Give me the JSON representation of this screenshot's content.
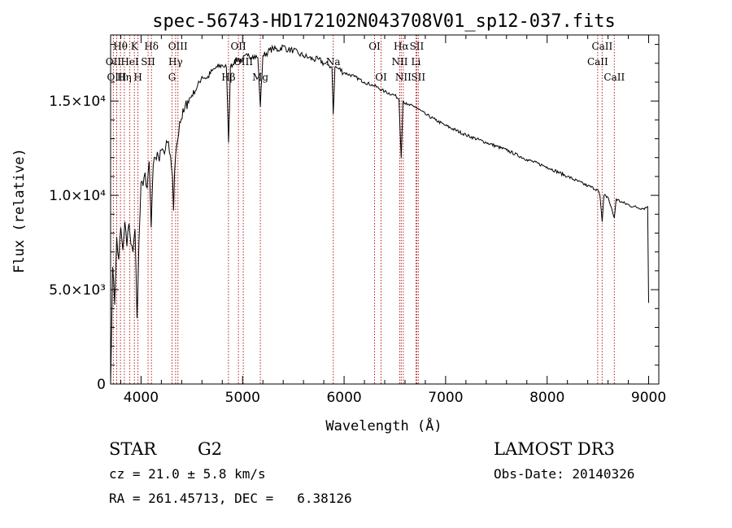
{
  "chart_data": {
    "type": "line",
    "title": "spec-56743-HD172102N043708V01_sp12-037.fits",
    "xlabel": "Wavelength (Å)",
    "ylabel": "Flux (relative)",
    "xlim": [
      3700,
      9100
    ],
    "ylim": [
      0,
      18500
    ],
    "x_ticks": [
      4000,
      5000,
      6000,
      7000,
      8000,
      9000
    ],
    "y_ticks": [
      {
        "value": 0,
        "label": "0"
      },
      {
        "value": 5000,
        "label": "5.0×10³"
      },
      {
        "value": 10000,
        "label": "1.0×10⁴"
      },
      {
        "value": 15000,
        "label": "1.5×10⁴"
      }
    ],
    "line_color": "#000000",
    "marker_color": "#b22222",
    "series": [
      {
        "name": "flux",
        "x": [
          3700,
          3720,
          3740,
          3760,
          3780,
          3800,
          3820,
          3840,
          3860,
          3880,
          3900,
          3920,
          3940,
          3960,
          3980,
          4000,
          4020,
          4040,
          4060,
          4080,
          4100,
          4120,
          4140,
          4160,
          4180,
          4200,
          4230,
          4260,
          4290,
          4310,
          4320,
          4330,
          4350,
          4380,
          4420,
          4460,
          4500,
          4550,
          4600,
          4650,
          4700,
          4750,
          4800,
          4840,
          4862,
          4880,
          4920,
          4960,
          5000,
          5050,
          5100,
          5150,
          5175,
          5200,
          5250,
          5300,
          5350,
          5400,
          5450,
          5500,
          5550,
          5600,
          5650,
          5700,
          5750,
          5800,
          5850,
          5880,
          5893,
          5910,
          5950,
          6000,
          6100,
          6200,
          6300,
          6400,
          6500,
          6540,
          6563,
          6580,
          6620,
          6700,
          6800,
          6900,
          7000,
          7200,
          7400,
          7600,
          7800,
          8000,
          8200,
          8400,
          8498,
          8520,
          8542,
          8560,
          8600,
          8662,
          8680,
          8750,
          8850,
          8950,
          8990,
          9000
        ],
        "values": [
          0,
          6200,
          4200,
          7800,
          6600,
          8300,
          7100,
          8600,
          7300,
          8500,
          7400,
          7000,
          8200,
          3500,
          7600,
          10700,
          10500,
          11200,
          10400,
          11800,
          8300,
          11600,
          12000,
          12300,
          11800,
          12400,
          12200,
          12800,
          12100,
          11000,
          9200,
          11200,
          12600,
          13900,
          14400,
          15000,
          15300,
          15700,
          16300,
          16200,
          16600,
          16800,
          16900,
          16800,
          12800,
          16800,
          17100,
          17200,
          17200,
          17400,
          17400,
          17300,
          14700,
          17400,
          17600,
          17800,
          17700,
          17900,
          17700,
          17700,
          17500,
          17400,
          17300,
          17200,
          17200,
          17000,
          16900,
          16800,
          14300,
          16800,
          16700,
          16500,
          16300,
          16000,
          15800,
          15500,
          15300,
          15100,
          12000,
          15000,
          14800,
          14700,
          14300,
          14000,
          13700,
          13200,
          12800,
          12400,
          11900,
          11500,
          11000,
          10500,
          10300,
          10000,
          8600,
          10000,
          9900,
          8800,
          9800,
          9600,
          9400,
          9300,
          9400,
          4300
        ]
      }
    ],
    "line_markers": [
      {
        "name": "Hθ",
        "wavelength": 3797,
        "row": 0
      },
      {
        "name": "OII",
        "wavelength": 3727,
        "row": 1
      },
      {
        "name": "OIII",
        "wavelength": 3760,
        "row": 2
      },
      {
        "name": "K",
        "wavelength": 3934,
        "row": 0
      },
      {
        "name": "HeI",
        "wavelength": 3889,
        "row": 1
      },
      {
        "name": "Hη",
        "wavelength": 3835,
        "row": 2
      },
      {
        "name": "H",
        "wavelength": 3969,
        "row": 2
      },
      {
        "name": "SII",
        "wavelength": 4069,
        "row": 1
      },
      {
        "name": "Hδ",
        "wavelength": 4102,
        "row": 0
      },
      {
        "name": "OIII",
        "wavelength": 4363,
        "row": 0
      },
      {
        "name": "Hγ",
        "wavelength": 4340,
        "row": 1
      },
      {
        "name": "G",
        "wavelength": 4305,
        "row": 2
      },
      {
        "name": "OII",
        "wavelength": 4959,
        "row": 0
      },
      {
        "name": "OIII",
        "wavelength": 5007,
        "row": 1
      },
      {
        "name": "Hβ",
        "wavelength": 4861,
        "row": 2
      },
      {
        "name": "Mg",
        "wavelength": 5175,
        "row": 2
      },
      {
        "name": "Na",
        "wavelength": 5893,
        "row": 1
      },
      {
        "name": "OI",
        "wavelength": 6300,
        "row": 0
      },
      {
        "name": "OI",
        "wavelength": 6364,
        "row": 2
      },
      {
        "name": "Hα",
        "wavelength": 6563,
        "row": 0
      },
      {
        "name": "NII",
        "wavelength": 6548,
        "row": 1
      },
      {
        "name": "NII",
        "wavelength": 6583,
        "row": 2
      },
      {
        "name": "SII",
        "wavelength": 6716,
        "row": 0
      },
      {
        "name": "Li",
        "wavelength": 6708,
        "row": 1
      },
      {
        "name": "SII",
        "wavelength": 6731,
        "row": 2
      },
      {
        "name": "CaII",
        "wavelength": 8542,
        "row": 0
      },
      {
        "name": "CaII",
        "wavelength": 8498,
        "row": 1
      },
      {
        "name": "CaII",
        "wavelength": 8662,
        "row": 2
      }
    ]
  },
  "info": {
    "object_class": "STAR",
    "subclass": "G2",
    "cz": "cz = 21.0 ± 5.8 km/s",
    "coords": "RA = 261.45713, DEC =   6.38126",
    "survey": "LAMOST DR3",
    "obs_date": "Obs-Date: 20140326"
  }
}
